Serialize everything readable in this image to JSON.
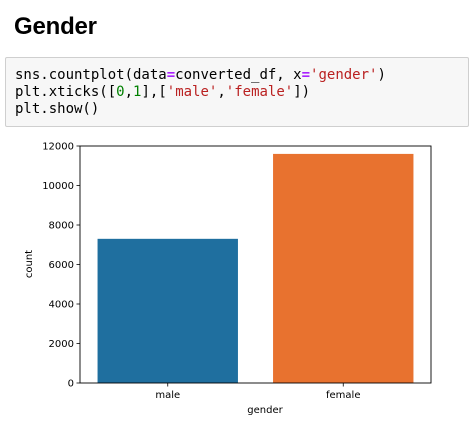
{
  "section": {
    "heading": "Gender"
  },
  "code_cell": {
    "lines": [
      [
        {
          "t": "plain",
          "v": "sns.countplot(data"
        },
        {
          "t": "op",
          "v": "="
        },
        {
          "t": "plain",
          "v": "converted_df, x"
        },
        {
          "t": "op",
          "v": "="
        },
        {
          "t": "str",
          "v": "'gender'"
        },
        {
          "t": "plain",
          "v": ")"
        }
      ],
      [
        {
          "t": "plain",
          "v": "plt.xticks(["
        },
        {
          "t": "num",
          "v": "0"
        },
        {
          "t": "plain",
          "v": ","
        },
        {
          "t": "num",
          "v": "1"
        },
        {
          "t": "plain",
          "v": "],["
        },
        {
          "t": "str",
          "v": "'male'"
        },
        {
          "t": "plain",
          "v": ","
        },
        {
          "t": "str",
          "v": "'female'"
        },
        {
          "t": "plain",
          "v": "])"
        }
      ],
      [
        {
          "t": "plain",
          "v": "plt.show()"
        }
      ]
    ],
    "colors": {
      "operator": "#aa22ff",
      "string": "#ba2121",
      "number": "#008000"
    }
  },
  "chart_data": {
    "type": "bar",
    "categories": [
      "male",
      "female"
    ],
    "values": [
      7300,
      11600
    ],
    "colors": [
      "#1f6f9f",
      "#e8722f"
    ],
    "xlabel": "gender",
    "ylabel": "count",
    "ylim": [
      0,
      12000
    ],
    "yticks": [
      0,
      2000,
      4000,
      6000,
      8000,
      10000,
      12000
    ],
    "ytick_labels": [
      "0",
      "2000",
      "4000",
      "6000",
      "8000",
      "10000",
      "12000"
    ],
    "grid": false,
    "legend": "none"
  }
}
